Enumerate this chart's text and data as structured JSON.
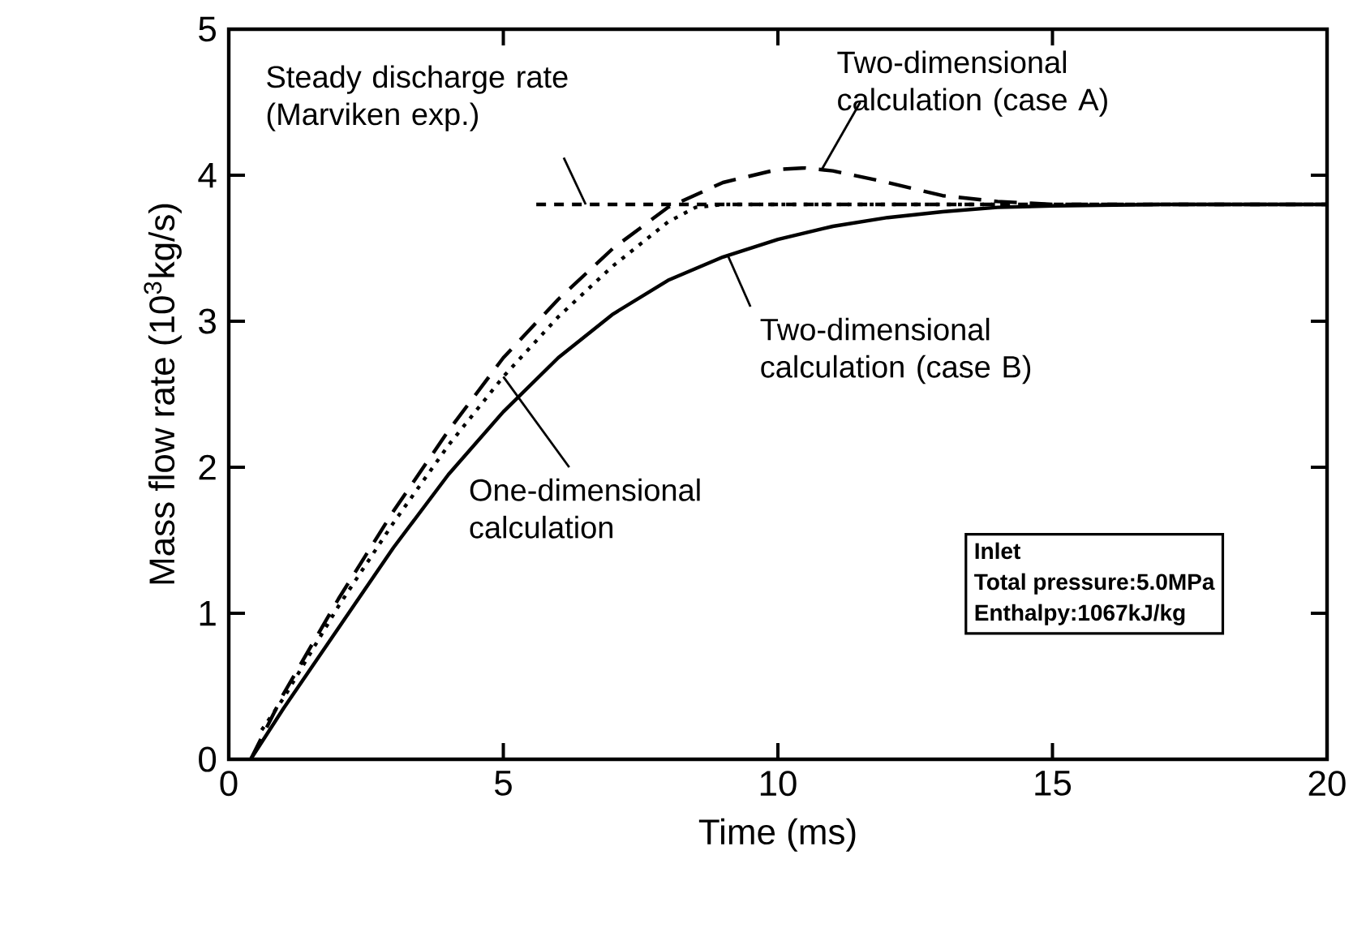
{
  "chart_data": {
    "type": "line",
    "xlabel": "Time (ms)",
    "ylabel": "Mass flow rate (10$^{3}$kg/s)",
    "xlim": [
      0,
      20
    ],
    "xticks": [
      0,
      5,
      10,
      15,
      20
    ],
    "ylim": [
      0,
      5
    ],
    "yticks": [
      0,
      1,
      2,
      3,
      4,
      5
    ],
    "grid": false,
    "marker": "none",
    "series": [
      {
        "color": "#000000",
        "line_style": "dashed",
        "x": [
          5.6,
          20
        ],
        "values": [
          3.8,
          3.8
        ]
      },
      {
        "color": "#000000",
        "line_style": "dashed",
        "x": [
          0.4,
          1,
          2,
          3,
          4,
          5,
          6,
          7,
          8,
          9,
          10,
          10.5,
          11,
          12,
          13,
          14,
          15,
          20
        ],
        "values": [
          0,
          0.45,
          1.1,
          1.7,
          2.25,
          2.75,
          3.15,
          3.5,
          3.78,
          3.95,
          4.04,
          4.05,
          4.03,
          3.95,
          3.86,
          3.82,
          3.8,
          3.8
        ]
      },
      {
        "color": "#000000",
        "line_style": "solid",
        "x": [
          0.4,
          1,
          2,
          3,
          4,
          5,
          6,
          7,
          8,
          9,
          10,
          11,
          12,
          13,
          14,
          15,
          17,
          20
        ],
        "values": [
          0,
          0.35,
          0.9,
          1.45,
          1.95,
          2.38,
          2.75,
          3.05,
          3.28,
          3.44,
          3.56,
          3.65,
          3.71,
          3.75,
          3.78,
          3.79,
          3.8,
          3.8
        ]
      },
      {
        "color": "#000000",
        "line_style": "dotted",
        "x": [
          0.6,
          1,
          2,
          3,
          4,
          5,
          6,
          7,
          8,
          8.5,
          9,
          14
        ],
        "values": [
          0.2,
          0.42,
          1.05,
          1.62,
          2.15,
          2.62,
          3.03,
          3.38,
          3.68,
          3.78,
          3.8,
          3.8
        ]
      }
    ],
    "annotations": [
      {
        "text": "Steady discharge rate (Marviken exp.)",
        "x": 6.5,
        "y": 3.8
      },
      {
        "text": "Two-dimensional calculation (case A)",
        "x": 10.8,
        "y": 4.04
      },
      {
        "text": "Two-dimensional calculation (case B)",
        "x": 9.1,
        "y": 3.44
      },
      {
        "text": "One-dimensional calculation",
        "x": 5,
        "y": 2.62
      },
      "Inlet",
      "Total pressure:5.0MPa",
      "Enthalpy:1067kJ/kg"
    ]
  }
}
